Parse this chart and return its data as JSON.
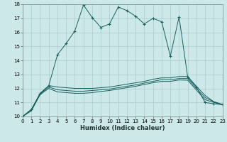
{
  "xlabel": "Humidex (Indice chaleur)",
  "ylabel": "",
  "bg_color": "#cce8e8",
  "grid_color": "#aacccc",
  "line_color": "#1a6060",
  "x_min": 0,
  "x_max": 23,
  "y_min": 10,
  "y_max": 18,
  "series": [
    {
      "x": [
        0,
        1,
        2,
        3,
        4,
        5,
        6,
        7,
        8,
        9,
        10,
        11,
        12,
        13,
        14,
        15,
        16,
        17,
        18,
        19,
        20,
        21,
        22,
        23
      ],
      "y": [
        10.0,
        10.5,
        11.6,
        12.2,
        14.4,
        15.2,
        16.1,
        17.95,
        17.05,
        16.35,
        16.6,
        17.8,
        17.55,
        17.15,
        16.6,
        17.0,
        16.75,
        14.3,
        17.1,
        12.8,
        12.1,
        11.0,
        10.9,
        10.85
      ],
      "marker": true
    },
    {
      "x": [
        0,
        1,
        2,
        3,
        4,
        5,
        6,
        7,
        8,
        9,
        10,
        11,
        12,
        13,
        14,
        15,
        16,
        17,
        18,
        19,
        20,
        21,
        22,
        23
      ],
      "y": [
        10.0,
        10.5,
        11.65,
        12.2,
        12.1,
        12.05,
        12.0,
        12.0,
        12.0,
        12.05,
        12.1,
        12.2,
        12.3,
        12.4,
        12.5,
        12.65,
        12.75,
        12.75,
        12.85,
        12.85,
        12.15,
        11.5,
        11.05,
        10.85
      ],
      "marker": false
    },
    {
      "x": [
        0,
        1,
        2,
        3,
        4,
        5,
        6,
        7,
        8,
        9,
        10,
        11,
        12,
        13,
        14,
        15,
        16,
        17,
        18,
        19,
        20,
        21,
        22,
        23
      ],
      "y": [
        10.0,
        10.45,
        11.6,
        12.1,
        11.9,
        11.85,
        11.8,
        11.8,
        11.85,
        11.9,
        11.95,
        12.05,
        12.15,
        12.25,
        12.38,
        12.5,
        12.62,
        12.62,
        12.7,
        12.7,
        12.0,
        11.35,
        11.05,
        10.85
      ],
      "marker": false
    },
    {
      "x": [
        0,
        1,
        2,
        3,
        4,
        5,
        6,
        7,
        8,
        9,
        10,
        11,
        12,
        13,
        14,
        15,
        16,
        17,
        18,
        19,
        20,
        21,
        22,
        23
      ],
      "y": [
        10.0,
        10.4,
        11.55,
        12.0,
        11.75,
        11.7,
        11.65,
        11.65,
        11.7,
        11.78,
        11.85,
        11.95,
        12.05,
        12.15,
        12.28,
        12.4,
        12.5,
        12.5,
        12.6,
        12.58,
        11.88,
        11.2,
        11.0,
        10.82
      ],
      "marker": false
    }
  ]
}
